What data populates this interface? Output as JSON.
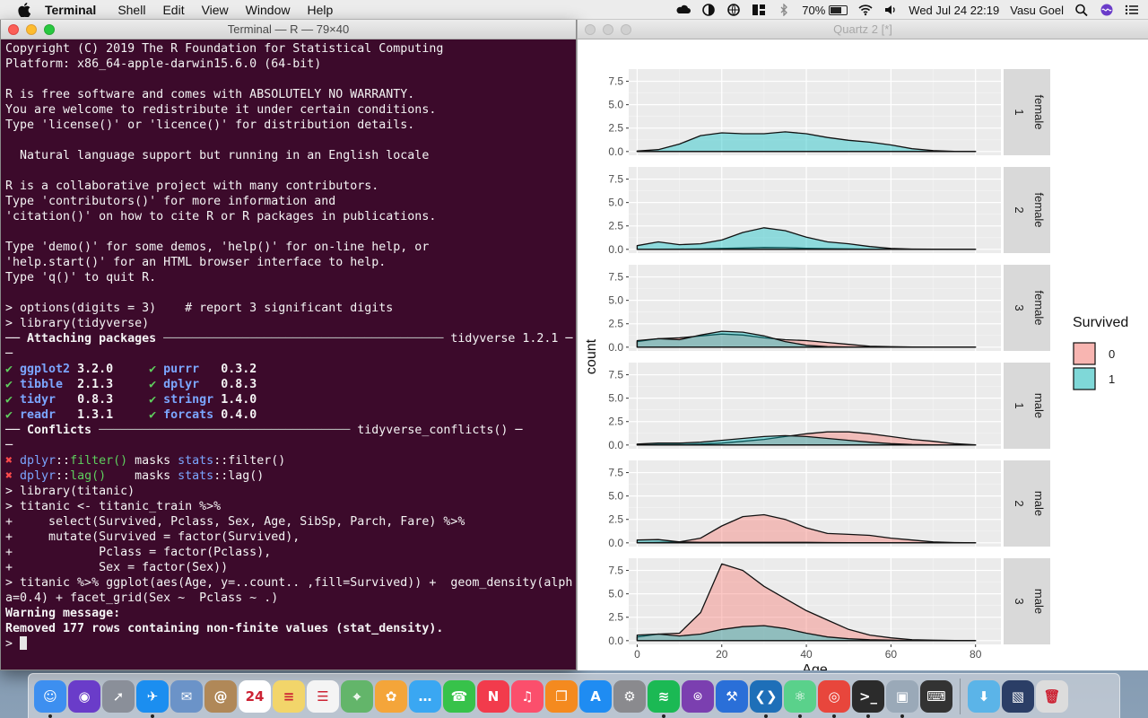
{
  "menubar": {
    "app_name": "Terminal",
    "items": [
      "Shell",
      "Edit",
      "View",
      "Window",
      "Help"
    ],
    "battery": "70%",
    "datetime": "Wed Jul 24  22:19",
    "user": "Vasu Goel"
  },
  "terminal": {
    "title": "Terminal — R — 79×40",
    "lines": [
      [
        [
          "Copyright (C) 2019 The R Foundation for Statistical Computing",
          ""
        ]
      ],
      [
        [
          "Platform: x86_64-apple-darwin15.6.0 (64-bit)",
          ""
        ]
      ],
      [
        [
          "",
          ""
        ]
      ],
      [
        [
          "R is free software and comes with ABSOLUTELY NO WARRANTY.",
          ""
        ]
      ],
      [
        [
          "You are welcome to redistribute it under certain conditions.",
          ""
        ]
      ],
      [
        [
          "Type 'license()' or 'licence()' for distribution details.",
          ""
        ]
      ],
      [
        [
          "",
          ""
        ]
      ],
      [
        [
          "  Natural language support but running in an English locale",
          ""
        ]
      ],
      [
        [
          "",
          ""
        ]
      ],
      [
        [
          "R is a collaborative project with many contributors.",
          ""
        ]
      ],
      [
        [
          "Type 'contributors()' for more information and",
          ""
        ]
      ],
      [
        [
          "'citation()' on how to cite R or R packages in publications.",
          ""
        ]
      ],
      [
        [
          "",
          ""
        ]
      ],
      [
        [
          "Type 'demo()' for some demos, 'help()' for on-line help, or",
          ""
        ]
      ],
      [
        [
          "'help.start()' for an HTML browser interface to help.",
          ""
        ]
      ],
      [
        [
          "Type 'q()' to quit R.",
          ""
        ]
      ],
      [
        [
          "",
          ""
        ]
      ],
      [
        [
          "> options(digits = 3)    # report 3 significant digits",
          ""
        ]
      ],
      [
        [
          "> library(tidyverse)",
          ""
        ]
      ],
      [
        [
          "── Attaching packages ",
          "b"
        ],
        [
          "───────────────────────────────────────",
          "gr"
        ],
        [
          " tidyverse 1.2.1 ─",
          ""
        ]
      ],
      [
        [
          "─",
          ""
        ]
      ],
      [
        [
          "✔ ",
          "g"
        ],
        [
          "ggplot2",
          "bl b"
        ],
        [
          " 3.2.0     ",
          "b"
        ],
        [
          "✔ ",
          "g"
        ],
        [
          "purrr  ",
          "bl b"
        ],
        [
          " 0.3.2",
          "b"
        ]
      ],
      [
        [
          "✔ ",
          "g"
        ],
        [
          "tibble ",
          "bl b"
        ],
        [
          " 2.1.3     ",
          "b"
        ],
        [
          "✔ ",
          "g"
        ],
        [
          "dplyr  ",
          "bl b"
        ],
        [
          " 0.8.3",
          "b"
        ]
      ],
      [
        [
          "✔ ",
          "g"
        ],
        [
          "tidyr  ",
          "bl b"
        ],
        [
          " 0.8.3     ",
          "b"
        ],
        [
          "✔ ",
          "g"
        ],
        [
          "stringr",
          "bl b"
        ],
        [
          " 1.4.0",
          "b"
        ]
      ],
      [
        [
          "✔ ",
          "g"
        ],
        [
          "readr  ",
          "bl b"
        ],
        [
          " 1.3.1     ",
          "b"
        ],
        [
          "✔ ",
          "g"
        ],
        [
          "forcats",
          "bl b"
        ],
        [
          " 0.4.0",
          "b"
        ]
      ],
      [
        [
          "── Conflicts ",
          "b"
        ],
        [
          "───────────────────────────────────",
          "gr"
        ],
        [
          " tidyverse_conflicts() ─",
          ""
        ]
      ],
      [
        [
          "─",
          ""
        ]
      ],
      [
        [
          "✖ ",
          "r"
        ],
        [
          "dplyr",
          "bl"
        ],
        [
          "::",
          ""
        ],
        [
          "filter()",
          "g"
        ],
        [
          " masks ",
          ""
        ],
        [
          "stats",
          "bl"
        ],
        [
          "::filter()",
          ""
        ]
      ],
      [
        [
          "✖ ",
          "r"
        ],
        [
          "dplyr",
          "bl"
        ],
        [
          "::",
          ""
        ],
        [
          "lag()",
          "g"
        ],
        [
          "    masks ",
          ""
        ],
        [
          "stats",
          "bl"
        ],
        [
          "::lag()",
          ""
        ]
      ],
      [
        [
          "> library(titanic)",
          ""
        ]
      ],
      [
        [
          "> titanic <- titanic_train %>%",
          ""
        ]
      ],
      [
        [
          "+     select(Survived, Pclass, Sex, Age, SibSp, Parch, Fare) %>%",
          ""
        ]
      ],
      [
        [
          "+     mutate(Survived = factor(Survived),",
          ""
        ]
      ],
      [
        [
          "+            Pclass = factor(Pclass),",
          ""
        ]
      ],
      [
        [
          "+            Sex = factor(Sex))",
          ""
        ]
      ],
      [
        [
          "> titanic %>% ggplot(aes(Age, y=..count.. ,fill=Survived)) +  geom_density(alph",
          ""
        ]
      ],
      [
        [
          "a=0.4) + facet_grid(Sex ~  Pclass ~ .)",
          ""
        ]
      ],
      [
        [
          "Warning message:",
          "b"
        ]
      ],
      [
        [
          "Removed 177 rows containing non-finite values (stat_density).",
          "b"
        ]
      ],
      [
        [
          "> ",
          ""
        ]
      ]
    ]
  },
  "quartz": {
    "title": "Quartz 2 [*]"
  },
  "chart_data": {
    "type": "area",
    "chart_kind": "faceted density (geom_density, y = count)",
    "xlabel": "Age",
    "ylabel": "count",
    "xlim": [
      -2,
      86
    ],
    "ylim": [
      -0.4,
      8.8
    ],
    "x_ticks": [
      0,
      20,
      40,
      60,
      80
    ],
    "y_ticks": [
      0.0,
      2.5,
      5.0,
      7.5
    ],
    "x_tick_labels": [
      "0",
      "20",
      "40",
      "60",
      "80"
    ],
    "y_tick_labels": [
      "0.0",
      "2.5",
      "5.0",
      "7.5"
    ],
    "legend": {
      "title": "Survived",
      "placement": "right",
      "entries": [
        {
          "label": "0",
          "color": "#f8b5b1"
        },
        {
          "label": "1",
          "color": "#7fd8d8"
        }
      ]
    },
    "series_colors": {
      "0": "#f8766d",
      "1": "#00bfc4"
    },
    "alpha": 0.4,
    "facets": [
      {
        "label_a": "female",
        "label_b": "1",
        "x": [
          0,
          5,
          10,
          15,
          20,
          25,
          30,
          35,
          40,
          45,
          50,
          55,
          60,
          65,
          70,
          75,
          80
        ],
        "series": [
          {
            "name": "0",
            "values": [
              0,
              0,
              0,
              0,
              0,
              0,
              0,
              0,
              0,
              0,
              0,
              0,
              0,
              0,
              0,
              0,
              0
            ]
          },
          {
            "name": "1",
            "values": [
              0.05,
              0.2,
              0.8,
              1.7,
              2.0,
              1.9,
              1.9,
              2.1,
              1.9,
              1.5,
              1.2,
              1.0,
              0.7,
              0.3,
              0.1,
              0.02,
              0
            ]
          }
        ]
      },
      {
        "label_a": "female",
        "label_b": "2",
        "x": [
          0,
          5,
          10,
          15,
          20,
          25,
          30,
          35,
          40,
          45,
          50,
          55,
          60,
          65,
          70,
          75,
          80
        ],
        "series": [
          {
            "name": "0",
            "values": [
              0,
              0.02,
              0.03,
              0.05,
              0.1,
              0.15,
              0.2,
              0.18,
              0.12,
              0.08,
              0.05,
              0.02,
              0.01,
              0,
              0,
              0,
              0
            ]
          },
          {
            "name": "1",
            "values": [
              0.4,
              0.8,
              0.5,
              0.6,
              1.0,
              1.8,
              2.3,
              2.0,
              1.3,
              0.8,
              0.6,
              0.3,
              0.1,
              0.03,
              0.01,
              0,
              0
            ]
          }
        ]
      },
      {
        "label_a": "female",
        "label_b": "3",
        "x": [
          0,
          5,
          10,
          15,
          20,
          25,
          30,
          35,
          40,
          45,
          50,
          55,
          60,
          65,
          70,
          75,
          80
        ],
        "series": [
          {
            "name": "0",
            "values": [
              0.6,
              0.9,
              1.0,
              1.2,
              1.4,
              1.3,
              1.0,
              0.8,
              0.7,
              0.5,
              0.3,
              0.1,
              0.05,
              0.02,
              0,
              0,
              0
            ]
          },
          {
            "name": "1",
            "values": [
              0.7,
              0.9,
              0.8,
              1.3,
              1.7,
              1.6,
              1.2,
              0.6,
              0.2,
              0.05,
              0.02,
              0,
              0,
              0,
              0,
              0,
              0
            ]
          }
        ]
      },
      {
        "label_a": "male",
        "label_b": "1",
        "x": [
          0,
          5,
          10,
          15,
          20,
          25,
          30,
          35,
          40,
          45,
          50,
          55,
          60,
          65,
          70,
          75,
          80
        ],
        "series": [
          {
            "name": "0",
            "values": [
              0.02,
              0.05,
              0.05,
              0.1,
              0.2,
              0.4,
              0.6,
              0.9,
              1.2,
              1.4,
              1.4,
              1.2,
              0.9,
              0.6,
              0.4,
              0.15,
              0.02
            ]
          },
          {
            "name": "1",
            "values": [
              0.1,
              0.2,
              0.2,
              0.3,
              0.5,
              0.7,
              0.9,
              1.0,
              0.9,
              0.7,
              0.5,
              0.3,
              0.15,
              0.05,
              0.02,
              0,
              0
            ]
          }
        ]
      },
      {
        "label_a": "male",
        "label_b": "2",
        "x": [
          0,
          5,
          10,
          15,
          20,
          25,
          30,
          35,
          40,
          45,
          50,
          55,
          60,
          65,
          70,
          75,
          80
        ],
        "series": [
          {
            "name": "0",
            "values": [
              0.02,
              0.05,
              0.1,
              0.5,
              1.8,
              2.8,
              3.0,
              2.5,
              1.6,
              1.0,
              0.9,
              0.8,
              0.5,
              0.3,
              0.1,
              0.03,
              0
            ]
          },
          {
            "name": "1",
            "values": [
              0.3,
              0.35,
              0.1,
              0.05,
              0.05,
              0.05,
              0.05,
              0.05,
              0.05,
              0.03,
              0.02,
              0.01,
              0,
              0,
              0,
              0,
              0
            ]
          }
        ]
      },
      {
        "label_a": "male",
        "label_b": "3",
        "x": [
          0,
          5,
          10,
          15,
          20,
          25,
          30,
          35,
          40,
          45,
          50,
          55,
          60,
          65,
          70,
          75,
          80
        ],
        "series": [
          {
            "name": "0",
            "values": [
              0.4,
              0.7,
              0.8,
              3.0,
              8.2,
              7.5,
              5.8,
              4.5,
              3.2,
              2.2,
              1.2,
              0.6,
              0.3,
              0.1,
              0.05,
              0.02,
              0
            ]
          },
          {
            "name": "1",
            "values": [
              0.6,
              0.7,
              0.5,
              0.7,
              1.2,
              1.5,
              1.6,
              1.3,
              0.8,
              0.4,
              0.2,
              0.1,
              0.05,
              0,
              0,
              0,
              0
            ]
          }
        ]
      }
    ]
  },
  "dock": {
    "apps": [
      {
        "name": "Finder",
        "icon": "finder-icon",
        "color": "#3d8ff0",
        "glyph": "☺",
        "running": true
      },
      {
        "name": "Siri",
        "icon": "siri-icon",
        "color": "#6a3cc9",
        "glyph": "◉",
        "running": false
      },
      {
        "name": "Launchpad",
        "icon": "launchpad-icon",
        "color": "#8a8f99",
        "glyph": "➚",
        "running": false
      },
      {
        "name": "Safari",
        "icon": "safari-icon",
        "color": "#1b8ef0",
        "glyph": "✈",
        "running": true
      },
      {
        "name": "Mail",
        "icon": "mail-icon",
        "color": "#6b93c8",
        "glyph": "✉",
        "running": false
      },
      {
        "name": "Contacts",
        "icon": "contacts-icon",
        "color": "#b08858",
        "glyph": "@",
        "running": false
      },
      {
        "name": "Calendar",
        "icon": "calendar-icon",
        "color": "#ffffff",
        "glyph": "24",
        "running": false
      },
      {
        "name": "Notes",
        "icon": "notes-icon",
        "color": "#f2d56a",
        "glyph": "≡",
        "running": false
      },
      {
        "name": "Reminders",
        "icon": "reminders-icon",
        "color": "#f4f4f4",
        "glyph": "☰",
        "running": false
      },
      {
        "name": "Maps",
        "icon": "maps-icon",
        "color": "#63b56a",
        "glyph": "⌖",
        "running": false
      },
      {
        "name": "Photos",
        "icon": "photos-icon",
        "color": "#f4a53a",
        "glyph": "✿",
        "running": false
      },
      {
        "name": "Messages",
        "icon": "messages-icon",
        "color": "#3aa7f2",
        "glyph": "…",
        "running": false
      },
      {
        "name": "FaceTime",
        "icon": "facetime-icon",
        "color": "#37c24a",
        "glyph": "☎",
        "running": false
      },
      {
        "name": "News",
        "icon": "news-icon",
        "color": "#f23b4c",
        "glyph": "N",
        "running": false
      },
      {
        "name": "Music",
        "icon": "music-icon",
        "color": "#fb4f6c",
        "glyph": "♫",
        "running": false
      },
      {
        "name": "Books",
        "icon": "books-icon",
        "color": "#f48a1f",
        "glyph": "❐",
        "running": false
      },
      {
        "name": "App Store",
        "icon": "app-store-icon",
        "color": "#1f8cf2",
        "glyph": "A",
        "running": false
      },
      {
        "name": "System Preferences",
        "icon": "system-preferences-icon",
        "color": "#8a8a8e",
        "glyph": "⚙",
        "running": false
      },
      {
        "name": "Spotify",
        "icon": "spotify-icon",
        "color": "#1bb954",
        "glyph": "≋",
        "running": true
      },
      {
        "name": "GitHub",
        "icon": "github-icon",
        "color": "#7b3fb0",
        "glyph": "⌾",
        "running": false
      },
      {
        "name": "Xcode",
        "icon": "xcode-icon",
        "color": "#2a6fd8",
        "glyph": "⚒",
        "running": false
      },
      {
        "name": "VS Code",
        "icon": "vscode-icon",
        "color": "#1e6fb8",
        "glyph": "❮❯",
        "running": true
      },
      {
        "name": "Atom",
        "icon": "atom-icon",
        "color": "#5ad18b",
        "glyph": "⚛",
        "running": true
      },
      {
        "name": "Chrome",
        "icon": "chrome-icon",
        "color": "#e8463c",
        "glyph": "◎",
        "running": true
      },
      {
        "name": "Terminal",
        "icon": "terminal-icon",
        "color": "#2b2b2b",
        "glyph": ">_",
        "running": true
      },
      {
        "name": "Preview",
        "icon": "preview-icon",
        "color": "#9aa9b8",
        "glyph": "▣",
        "running": true
      },
      {
        "name": "Console",
        "icon": "console-icon",
        "color": "#333333",
        "glyph": "⌨",
        "running": false
      }
    ],
    "right_items": [
      {
        "name": "Downloads",
        "icon": "downloads-folder-icon",
        "color": "#5bb4e8",
        "glyph": "⬇"
      },
      {
        "name": "Desktop",
        "icon": "desktop-icon",
        "color": "#2b3e66",
        "glyph": "▧"
      },
      {
        "name": "Trash",
        "icon": "trash-icon",
        "color": "#dcdcdc",
        "glyph": "🗑"
      }
    ]
  }
}
